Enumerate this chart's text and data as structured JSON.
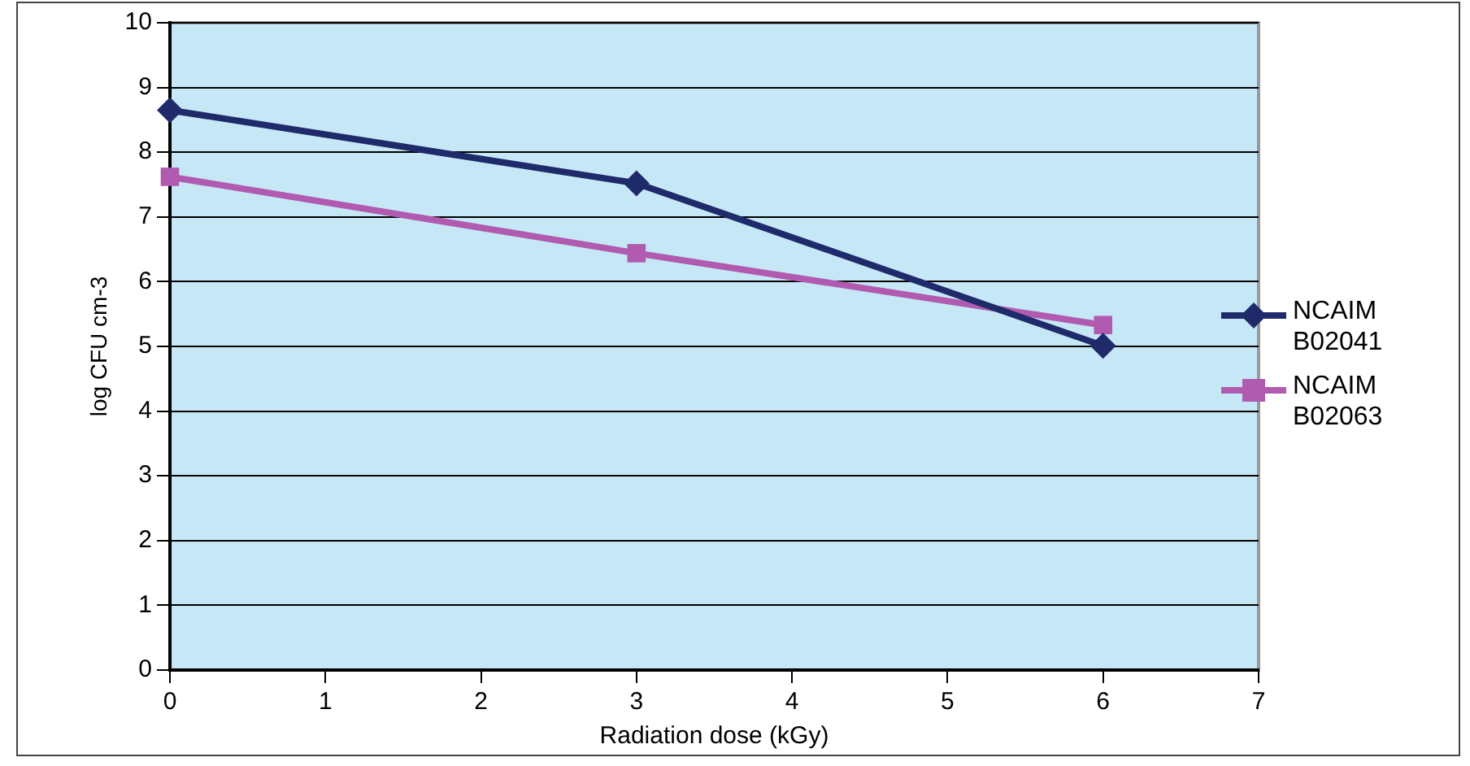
{
  "chart_data": {
    "type": "line",
    "xlabel": "Radiation dose (kGy)",
    "ylabel": "log CFU cm-3",
    "x": [
      0,
      3,
      6
    ],
    "series": [
      {
        "name": "NCAIM B02041",
        "color": "#1f2a6b",
        "values": [
          8.65,
          7.52,
          5.01
        ],
        "marker": "diamond"
      },
      {
        "name": "NCAIM B02063",
        "color": "#b05bb0",
        "values": [
          7.62,
          6.44,
          5.33
        ],
        "marker": "square"
      }
    ],
    "xlim": [
      0,
      7
    ],
    "xticks": [
      0,
      1,
      2,
      3,
      4,
      5,
      6,
      7
    ],
    "ylim": [
      0,
      10
    ],
    "yticks": [
      0,
      1,
      2,
      3,
      4,
      5,
      6,
      7,
      8,
      9,
      10
    ],
    "grid": "y",
    "legend": "right",
    "line_style": "solid"
  }
}
